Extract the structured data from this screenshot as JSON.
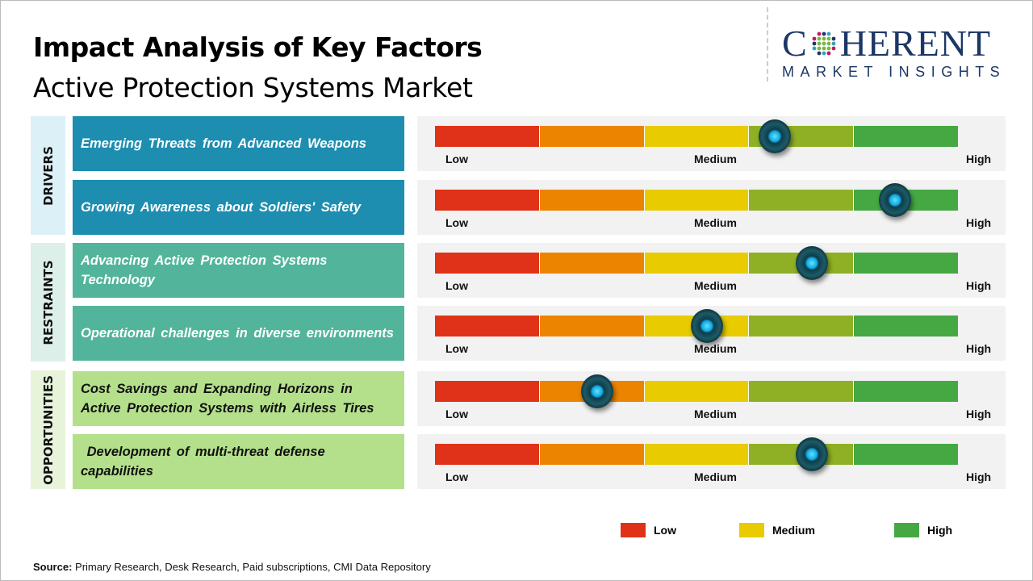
{
  "header": {
    "title": "Impact Analysis of Key Factors",
    "subtitle": "Active Protection Systems Market"
  },
  "logo": {
    "main": "COHERENT",
    "sub": "MARKET INSIGHTS",
    "color": "#1c3766"
  },
  "scale_labels": {
    "low": "Low",
    "medium": "Medium",
    "high": "High"
  },
  "scale_colors": [
    "#e03218",
    "#ec8400",
    "#e8cb00",
    "#8fb024",
    "#45a843"
  ],
  "categories": [
    {
      "label": "DRIVERS",
      "bg": "#dcf0f8",
      "factor_bg": "#1d8db0",
      "factor_text": "#ffffff"
    },
    {
      "label": "RESTRAINTS",
      "bg": "#dcefe9",
      "factor_bg": "#52b59b",
      "factor_text": "#ffffff"
    },
    {
      "label": "OPPORTUNITIES",
      "bg": "#e7f4da",
      "factor_bg": "#b4e08c",
      "factor_text": "#111111"
    }
  ],
  "chart_data": {
    "type": "gauge-table",
    "scale": [
      "Low",
      "Medium",
      "High"
    ],
    "value_range": [
      0,
      1
    ],
    "factors": [
      {
        "category": "DRIVERS",
        "label": "Emerging Threats from Advanced Weapons",
        "impact": 0.65
      },
      {
        "category": "DRIVERS",
        "label": "Growing Awareness about Soldiers' Safety",
        "impact": 0.88
      },
      {
        "category": "RESTRAINTS",
        "label": "Advancing Active Protection Systems Technology",
        "impact": 0.72
      },
      {
        "category": "RESTRAINTS",
        "label": "Operational challenges in diverse environments",
        "impact": 0.52
      },
      {
        "category": "OPPORTUNITIES",
        "label": "Cost Savings and Expanding Horizons in Active Protection Systems with Airless Tires",
        "impact": 0.31
      },
      {
        "category": "OPPORTUNITIES",
        "label": " Development of multi-threat defense capabilities",
        "impact": 0.72
      }
    ],
    "legend": [
      {
        "label": "Low",
        "color": "#e03218"
      },
      {
        "label": "Medium",
        "color": "#e8cb00"
      },
      {
        "label": "High",
        "color": "#45a843"
      }
    ]
  },
  "source": {
    "label": "Source:",
    "text": " Primary Research, Desk Research, Paid subscriptions, CMI Data Repository"
  }
}
